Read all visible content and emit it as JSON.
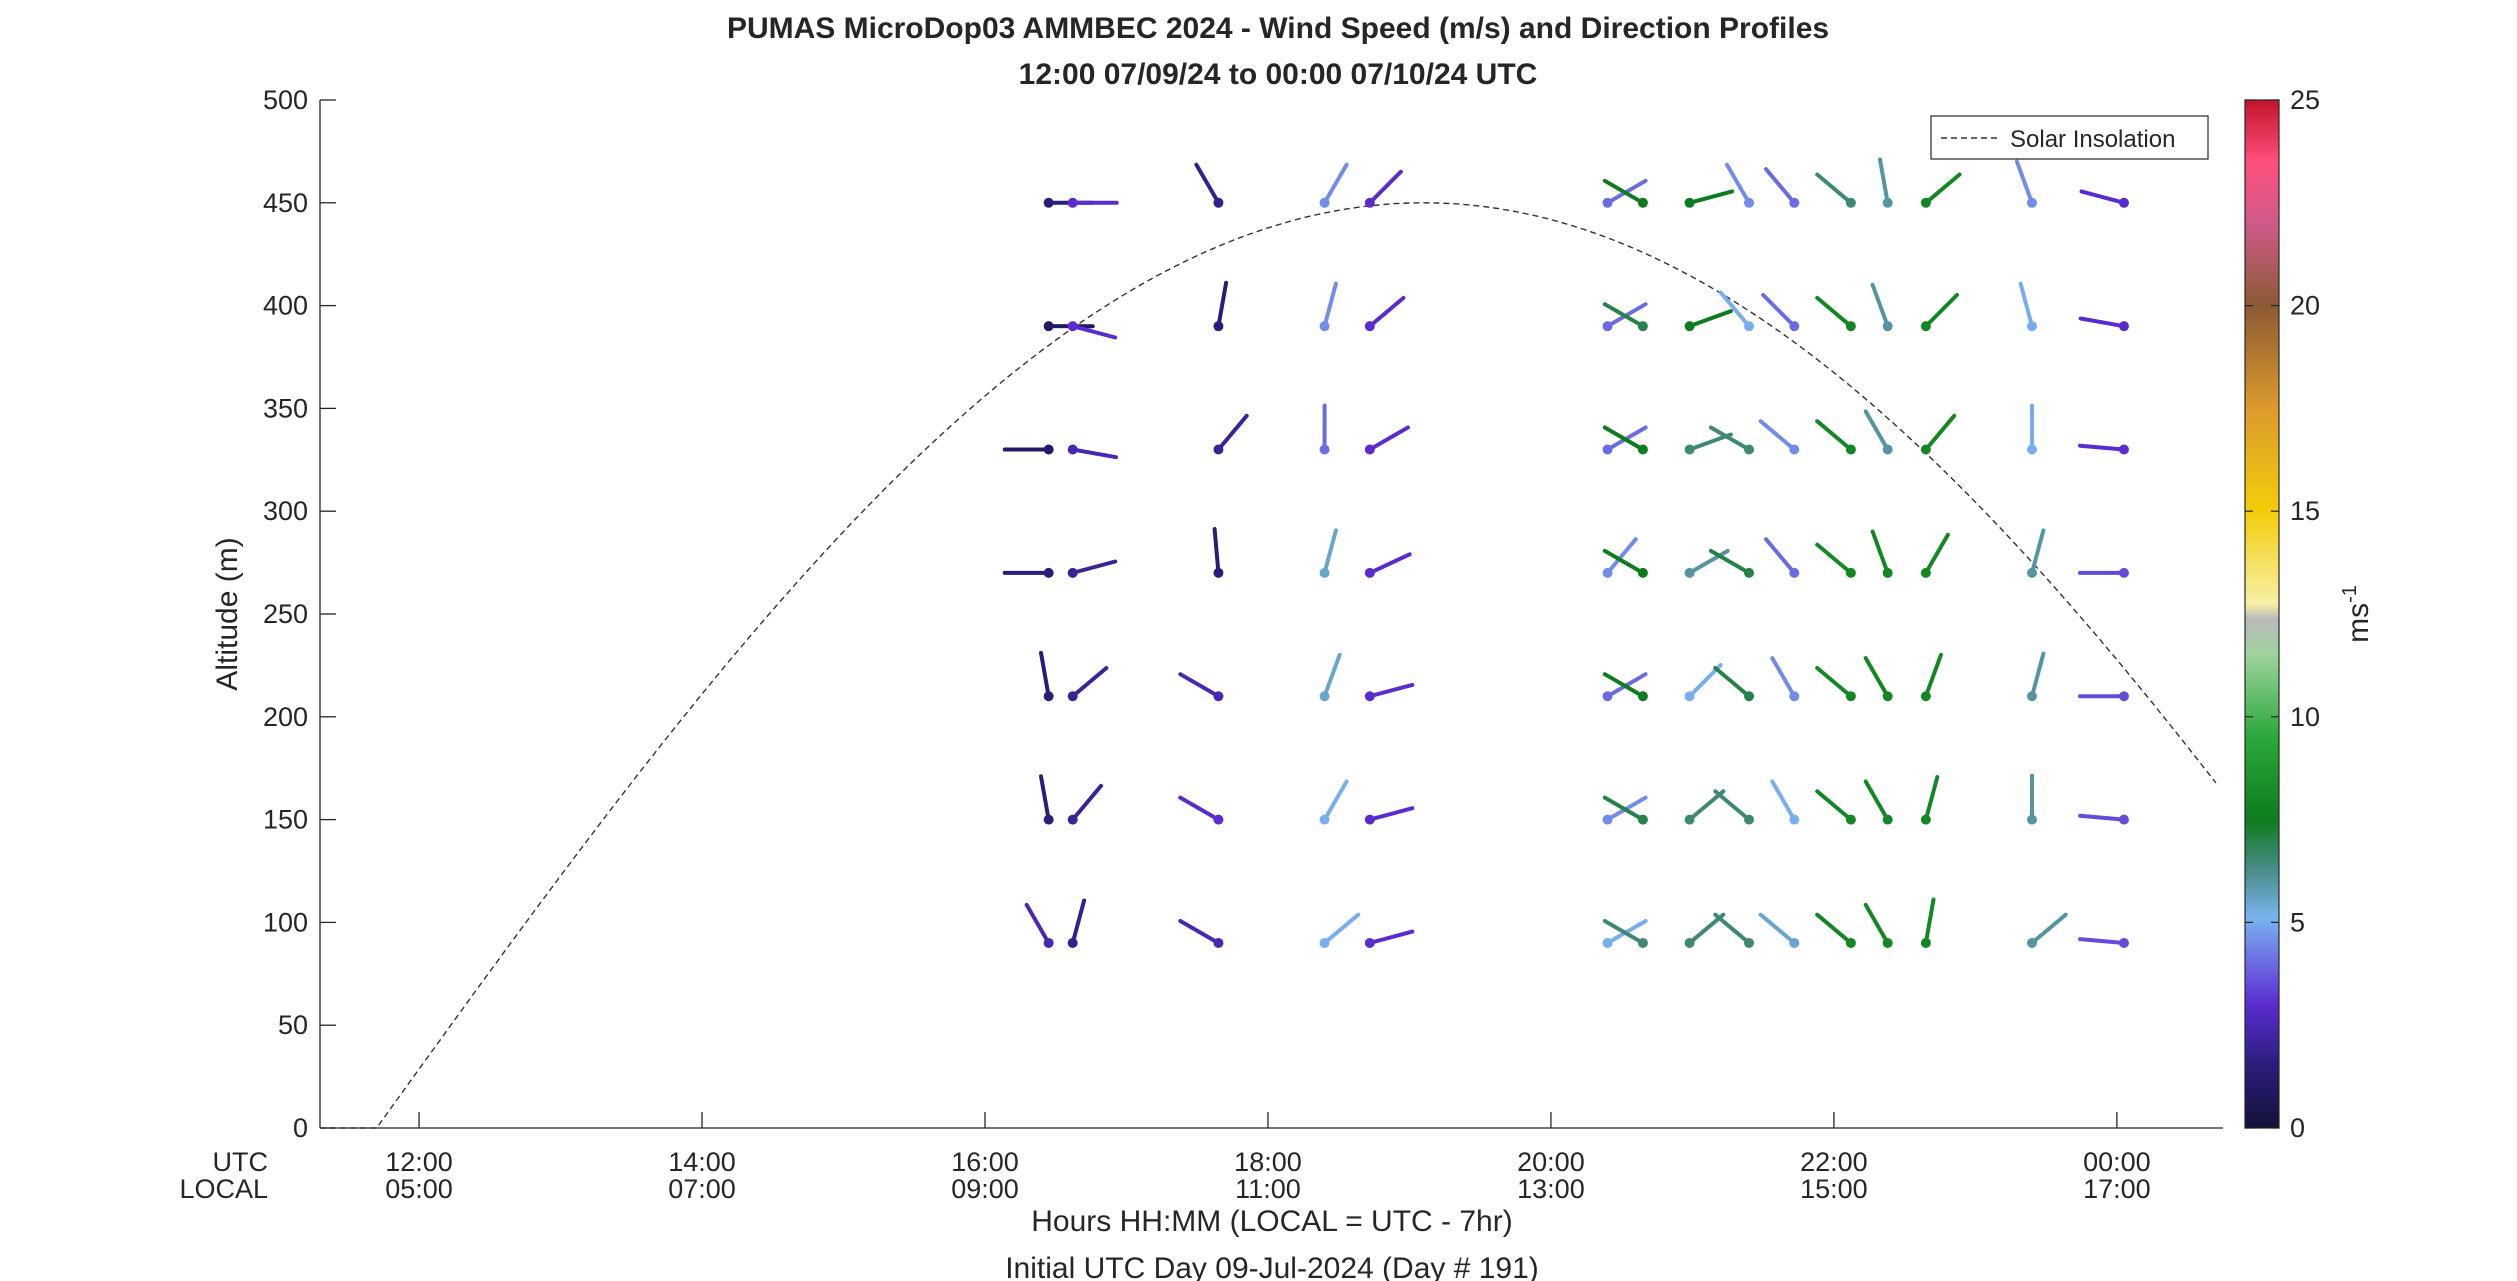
{
  "chart_data": {
    "type": "wind_barb_profile",
    "title": "PUMAS MicroDop03 AMMBEC 2024 - Wind Speed (m/s) and Direction Profiles",
    "subtitle": "12:00 07/09/24 to 00:00 07/10/24  UTC",
    "ylabel": "Altitude (m)",
    "xlabel": "Hours HH:MM  (LOCAL = UTC - 7hr)",
    "xlabel2": "Initial UTC Day 09-Jul-2024 (Day # 191)",
    "row_labels": [
      "UTC",
      "LOCAL"
    ],
    "xlim_hours_utc": [
      11.3,
      24.75
    ],
    "ylim": [
      0,
      500
    ],
    "y_ticks": [
      0,
      50,
      100,
      150,
      200,
      250,
      300,
      350,
      400,
      450,
      500
    ],
    "x_ticks": [
      {
        "hour": 12,
        "utc": "12:00",
        "local": "05:00"
      },
      {
        "hour": 14,
        "utc": "14:00",
        "local": "07:00"
      },
      {
        "hour": 16,
        "utc": "16:00",
        "local": "09:00"
      },
      {
        "hour": 18,
        "utc": "18:00",
        "local": "11:00"
      },
      {
        "hour": 20,
        "utc": "20:00",
        "local": "13:00"
      },
      {
        "hour": 22,
        "utc": "22:00",
        "local": "15:00"
      },
      {
        "hour": 24,
        "utc": "00:00",
        "local": "17:00"
      }
    ],
    "colorbar": {
      "label": "ms",
      "label_superscript": "-1",
      "range": [
        0,
        25
      ],
      "ticks": [
        0,
        5,
        10,
        15,
        20,
        25
      ]
    },
    "legend": {
      "entry": "Solar Insolation",
      "style": "dashed",
      "placement": "top-right"
    },
    "solar_insolation_curve": {
      "start_hour": 11.7,
      "peak_hour": 19.1,
      "peak_value": 450
    },
    "altitudes": [
      90,
      150,
      210,
      270,
      330,
      390,
      450
    ],
    "columns": [
      {
        "hour": 16.45,
        "vectors": [
          [
            2.5,
            330
          ],
          [
            1.5,
            350
          ],
          [
            1.5,
            350
          ],
          [
            1.5,
            270
          ],
          [
            1.2,
            270
          ],
          [
            1.0,
            90
          ],
          [
            1.5,
            90
          ]
        ]
      },
      {
        "hour": 16.62,
        "vectors": [
          [
            1.8,
            15
          ],
          [
            2.0,
            40
          ],
          [
            2.0,
            50
          ],
          [
            2.0,
            75
          ],
          [
            2.5,
            100
          ],
          [
            3.0,
            105
          ],
          [
            3.0,
            90
          ]
        ]
      },
      {
        "hour": 17.65,
        "vectors": [
          [
            2.5,
            300
          ],
          [
            3.0,
            300
          ],
          [
            2.5,
            300
          ],
          [
            1.5,
            355
          ],
          [
            2.0,
            40
          ],
          [
            1.5,
            10
          ],
          [
            1.8,
            330
          ]
        ]
      },
      {
        "hour": 18.4,
        "vectors": [
          [
            5.0,
            50
          ],
          [
            5.0,
            30
          ],
          [
            5.5,
            20
          ],
          [
            5.5,
            15
          ],
          [
            4.0,
            0
          ],
          [
            4.5,
            15
          ],
          [
            4.5,
            30
          ]
        ]
      },
      {
        "hour": 18.72,
        "vectors": [
          [
            3.0,
            75
          ],
          [
            3.0,
            75
          ],
          [
            3.0,
            75
          ],
          [
            3.0,
            65
          ],
          [
            3.0,
            60
          ],
          [
            3.0,
            50
          ],
          [
            3.0,
            45
          ]
        ]
      },
      {
        "hour": 20.4,
        "vectors": [
          [
            5.0,
            60
          ],
          [
            4.5,
            60
          ],
          [
            4.0,
            60
          ],
          [
            4.5,
            40
          ],
          [
            4.0,
            60
          ],
          [
            4.0,
            60
          ],
          [
            4.0,
            60
          ]
        ]
      },
      {
        "hour": 20.65,
        "vectors": [
          [
            6.5,
            300
          ],
          [
            7.0,
            300
          ],
          [
            7.5,
            300
          ],
          [
            7.5,
            300
          ],
          [
            7.5,
            300
          ],
          [
            7.0,
            300
          ],
          [
            7.5,
            300
          ]
        ]
      },
      {
        "hour": 20.98,
        "vectors": [
          [
            6.5,
            50
          ],
          [
            6.5,
            50
          ],
          [
            5.0,
            45
          ],
          [
            6.0,
            60
          ],
          [
            6.5,
            70
          ],
          [
            7.5,
            70
          ],
          [
            7.5,
            75
          ]
        ]
      },
      {
        "hour": 21.4,
        "vectors": [
          [
            6.5,
            310
          ],
          [
            6.5,
            310
          ],
          [
            7.0,
            310
          ],
          [
            7.0,
            300
          ],
          [
            6.5,
            300
          ],
          [
            5.0,
            320
          ],
          [
            4.5,
            330
          ]
        ]
      },
      {
        "hour": 21.72,
        "vectors": [
          [
            5.5,
            310
          ],
          [
            5.0,
            330
          ],
          [
            4.5,
            330
          ],
          [
            4.0,
            320
          ],
          [
            4.5,
            310
          ],
          [
            4.0,
            315
          ],
          [
            4.0,
            320
          ]
        ]
      },
      {
        "hour": 22.12,
        "vectors": [
          [
            8.0,
            310
          ],
          [
            8.0,
            310
          ],
          [
            8.0,
            310
          ],
          [
            8.0,
            310
          ],
          [
            8.0,
            310
          ],
          [
            8.0,
            310
          ],
          [
            6.5,
            310
          ]
        ]
      },
      {
        "hour": 22.38,
        "vectors": [
          [
            8.0,
            330
          ],
          [
            8.0,
            330
          ],
          [
            8.0,
            330
          ],
          [
            8.0,
            340
          ],
          [
            6.0,
            330
          ],
          [
            6.0,
            340
          ],
          [
            6.0,
            350
          ]
        ]
      },
      {
        "hour": 22.65,
        "vectors": [
          [
            8.0,
            10
          ],
          [
            8.0,
            15
          ],
          [
            8.0,
            20
          ],
          [
            8.0,
            30
          ],
          [
            8.0,
            40
          ],
          [
            8.0,
            45
          ],
          [
            8.0,
            50
          ]
        ]
      },
      {
        "hour": 23.4,
        "vectors": [
          [
            6.0,
            50
          ],
          [
            6.0,
            0
          ],
          [
            6.0,
            15
          ],
          [
            6.0,
            15
          ],
          [
            5.0,
            0
          ],
          [
            5.0,
            345
          ],
          [
            4.5,
            340
          ]
        ]
      },
      {
        "hour": 24.05,
        "vectors": [
          [
            3.5,
            275
          ],
          [
            3.5,
            275
          ],
          [
            3.5,
            270
          ],
          [
            3.5,
            270
          ],
          [
            3.0,
            275
          ],
          [
            3.0,
            280
          ],
          [
            3.0,
            285
          ]
        ]
      }
    ]
  }
}
